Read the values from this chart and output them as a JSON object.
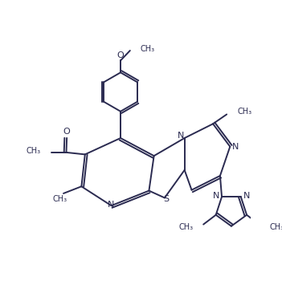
{
  "bg_color": "#ffffff",
  "line_color": "#2a2a50",
  "line_width": 1.4,
  "fig_width": 3.51,
  "fig_height": 3.75,
  "dpi": 100,
  "xlim": [
    0,
    10
  ],
  "ylim": [
    0,
    10.7
  ]
}
